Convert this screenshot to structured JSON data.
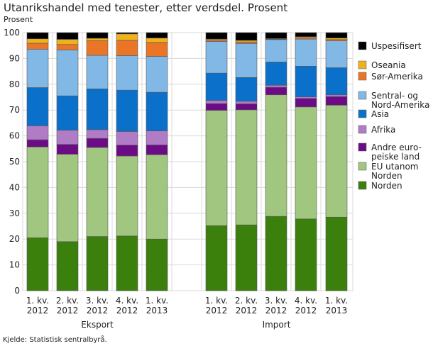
{
  "chart_data": {
    "type": "bar",
    "stacked": true,
    "title": "Utanrikshandel med tenester, etter verdsdel. Prosent",
    "ylabel": "Prosent",
    "ylim": [
      0,
      100
    ],
    "yticks": [
      0,
      10,
      20,
      30,
      40,
      50,
      60,
      70,
      80,
      90,
      100
    ],
    "grid": true,
    "legend_position": "right",
    "groups": [
      {
        "name": "Eksport",
        "categories": [
          [
            "1. kv.",
            "2012"
          ],
          [
            "2. kv.",
            "2012"
          ],
          [
            "3. kv.",
            "2012"
          ],
          [
            "4. kv.",
            "2012"
          ],
          [
            "1. kv.",
            "2013"
          ]
        ]
      },
      {
        "name": "Import",
        "categories": [
          [
            "1. kv.",
            "2012"
          ],
          [
            "2. kv.",
            "2012"
          ],
          [
            "3. kv.",
            "2012"
          ],
          [
            "4. kv.",
            "2012"
          ],
          [
            "1. kv.",
            "2013"
          ]
        ]
      }
    ],
    "series": [
      {
        "name": "Norden",
        "color": "#3b7f0d",
        "values": [
          20.5,
          19.0,
          21.0,
          21.2,
          20.0,
          25.2,
          25.5,
          28.8,
          27.8,
          28.5
        ]
      },
      {
        "name": "EU utanom Norden",
        "legend_lines": [
          "EU utanom",
          "Norden"
        ],
        "color": "#a0c67f",
        "values": [
          35.2,
          33.9,
          34.5,
          31.0,
          32.7,
          44.7,
          44.6,
          47.1,
          43.4,
          43.4
        ]
      },
      {
        "name": "Andre europeiske land",
        "legend_lines": [
          "Andre euro-",
          "peiske land"
        ],
        "color": "#6b0c86",
        "values": [
          2.8,
          3.8,
          3.5,
          4.2,
          3.8,
          2.6,
          2.3,
          2.9,
          3.3,
          3.3
        ]
      },
      {
        "name": "Afrika",
        "color": "#b07cc6",
        "values": [
          5.4,
          5.5,
          3.4,
          5.3,
          5.4,
          1.2,
          1.0,
          0.8,
          0.6,
          0.7
        ]
      },
      {
        "name": "Asia",
        "color": "#0a70c9",
        "values": [
          14.8,
          13.3,
          15.8,
          16.0,
          15.0,
          10.6,
          9.2,
          9.0,
          11.9,
          10.5
        ]
      },
      {
        "name": "Sentral- og Nord-Amerika",
        "legend_lines": [
          "Sentral- og",
          "Nord-Amerika"
        ],
        "color": "#82b8e6",
        "values": [
          14.9,
          17.8,
          13.0,
          13.4,
          13.9,
          12.3,
          13.2,
          8.7,
          10.5,
          10.4
        ]
      },
      {
        "name": "Sør-Amerika",
        "color": "#eb7527",
        "values": [
          2.3,
          2.1,
          5.7,
          5.9,
          5.4,
          0.6,
          0.6,
          0.2,
          0.5,
          0.5
        ]
      },
      {
        "name": "Oseania",
        "color": "#efb21d",
        "values": [
          1.7,
          2.0,
          0.9,
          2.5,
          1.7,
          0.3,
          0.6,
          0.2,
          0.4,
          0.6
        ]
      },
      {
        "name": "Uspesifisert",
        "color": "#000000",
        "values": [
          2.4,
          2.6,
          2.2,
          0.5,
          2.1,
          2.5,
          3.0,
          2.3,
          1.6,
          2.1
        ]
      }
    ],
    "source": "Kjelde: Statistisk sentralbyrå."
  }
}
